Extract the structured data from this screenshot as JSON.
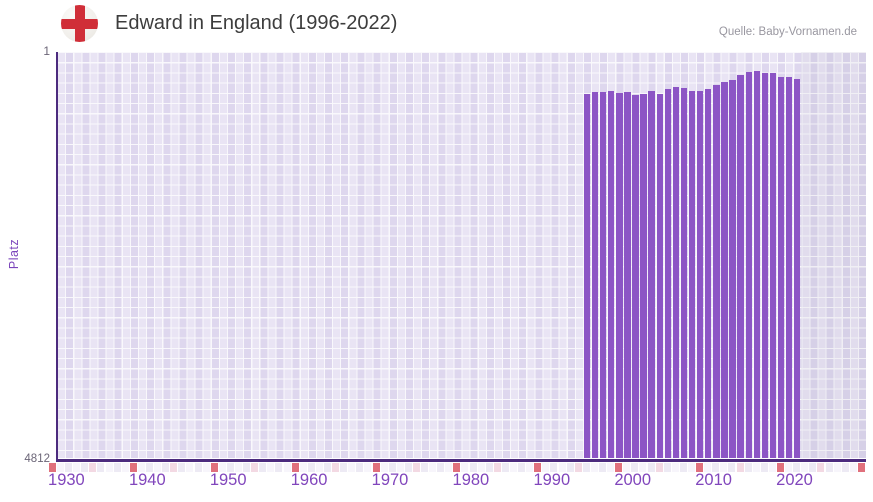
{
  "header": {
    "title": "Edward in England (1996-2022)",
    "source": "Quelle: Baby-Vornamen.de",
    "flag_icon": "england-flag-icon"
  },
  "chart_data": {
    "type": "bar",
    "title": "Edward in England (1996-2022)",
    "xlabel": "",
    "ylabel": "Platz",
    "categories": [
      1996,
      1997,
      1998,
      1999,
      2000,
      2001,
      2002,
      2003,
      2004,
      2005,
      2006,
      2007,
      2008,
      2009,
      2010,
      2011,
      2012,
      2013,
      2014,
      2015,
      2016,
      2017,
      2018,
      2019,
      2020,
      2021,
      2022
    ],
    "series": [
      {
        "name": "Platz",
        "values": [
          65,
          61,
          61,
          57,
          63,
          61,
          67,
          66,
          57,
          64,
          52,
          48,
          50,
          58,
          57,
          52,
          43,
          37,
          32,
          24,
          19,
          17,
          20,
          21,
          27,
          27,
          30
        ]
      }
    ],
    "y_axis": {
      "top_label": "1",
      "bottom_label": "4812",
      "min": 1,
      "max": 4812,
      "inverted": true,
      "scale": "sqrt",
      "grid": true
    },
    "x_axis": {
      "start_year": 1931,
      "band_start_year": 1930,
      "band_end_year": 2030,
      "tick_labels": [
        "1930",
        "1940",
        "1950",
        "1960",
        "1970",
        "1980",
        "1990",
        "2000",
        "2010",
        "2020"
      ],
      "tick_years": [
        1930,
        1940,
        1950,
        1960,
        1970,
        1980,
        1990,
        2000,
        2010,
        2020
      ]
    },
    "legend": "none",
    "colors": {
      "bar": "#8c55c5",
      "axis": "#4c2b7e",
      "tick_label": "#8146bc",
      "y_label": "#7b45bb",
      "decade_marker": "#e0707c",
      "mid_decade_marker": "#f3d9e3",
      "band_cell_even": "#edeaf4",
      "band_cell_odd": "#f7f5fb",
      "flag_cross": "#d02e38"
    }
  }
}
